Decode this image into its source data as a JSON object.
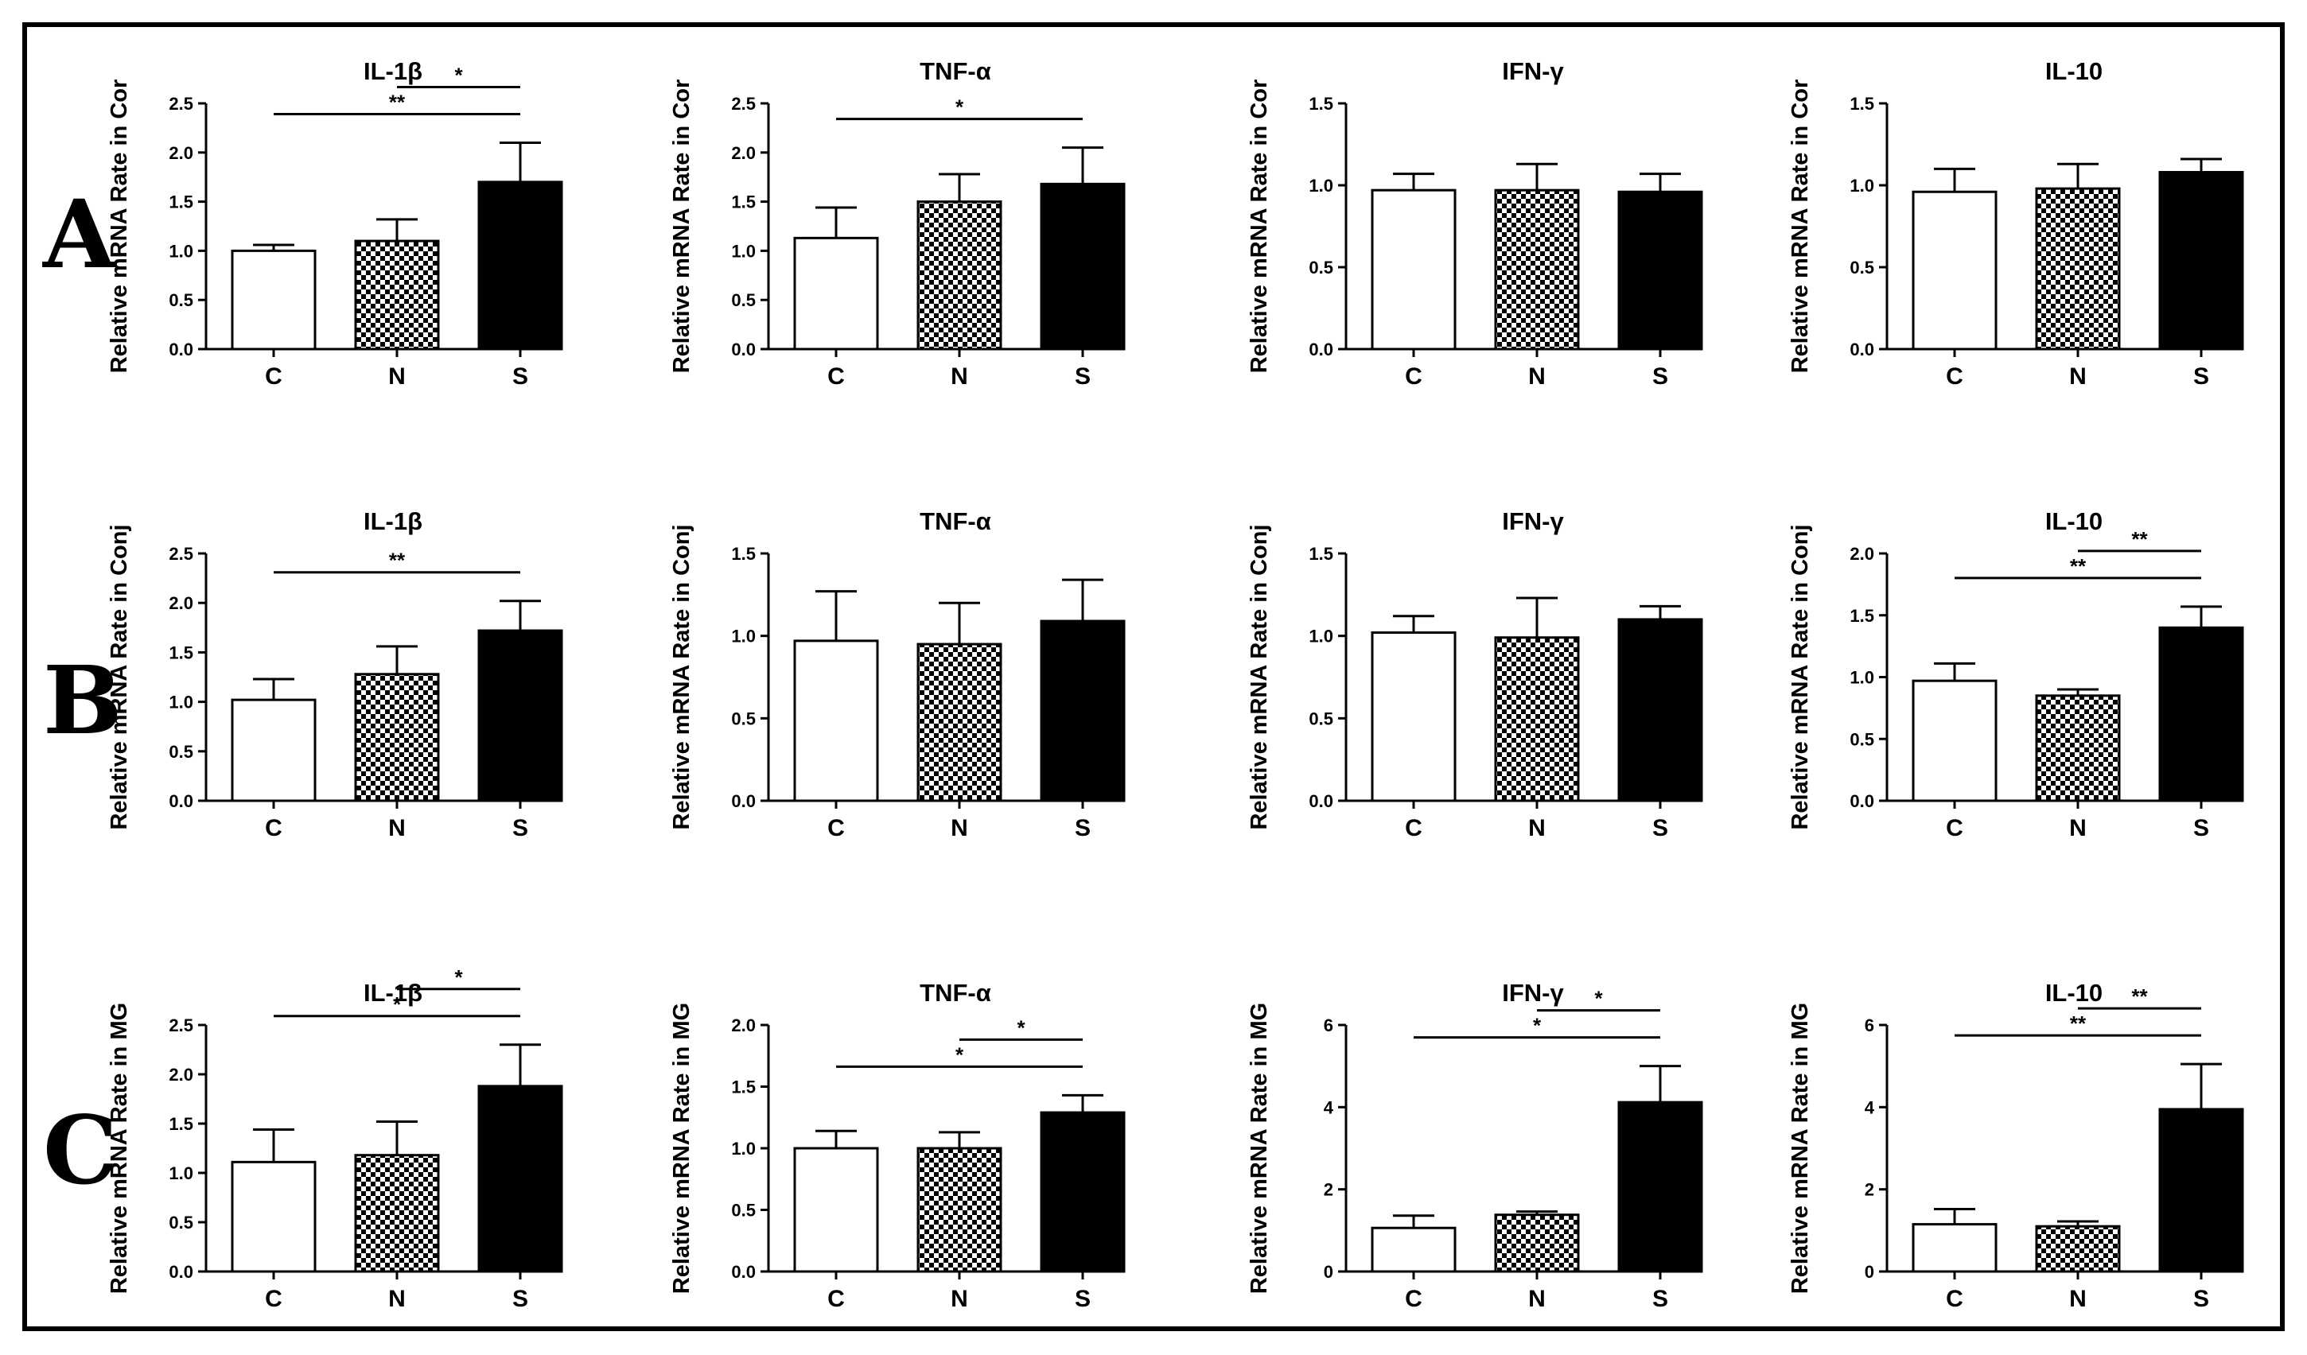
{
  "figure": {
    "row_labels": [
      "A",
      "B",
      "C"
    ],
    "colors": {
      "C": "#ffffff",
      "N": "checker",
      "S": "#000000"
    }
  },
  "chart_data": [
    {
      "type": "bar",
      "title": "IL-1β",
      "ylabel": "Relative mRNA Rate in Cor",
      "categories": [
        "C",
        "N",
        "S"
      ],
      "values": [
        1.0,
        1.1,
        1.7
      ],
      "errors": [
        0.06,
        0.22,
        0.4
      ],
      "ylim": [
        0,
        2.5
      ],
      "yticks": [
        "0.0",
        "0.5",
        "1.0",
        "1.5",
        "2.0",
        "2.5"
      ],
      "significance": [
        {
          "from": 0,
          "to": 2,
          "label": "**"
        },
        {
          "from": 1,
          "to": 2,
          "label": "*"
        }
      ]
    },
    {
      "type": "bar",
      "title": "TNF-α",
      "ylabel": "Relative mRNA Rate in Cor",
      "categories": [
        "C",
        "N",
        "S"
      ],
      "values": [
        1.13,
        1.5,
        1.68
      ],
      "errors": [
        0.31,
        0.28,
        0.37
      ],
      "ylim": [
        0,
        2.5
      ],
      "yticks": [
        "0.0",
        "0.5",
        "1.0",
        "1.5",
        "2.0",
        "2.5"
      ],
      "significance": [
        {
          "from": 0,
          "to": 2,
          "label": "*"
        }
      ]
    },
    {
      "type": "bar",
      "title": "IFN-γ",
      "ylabel": "Relative mRNA Rate in Cor",
      "categories": [
        "C",
        "N",
        "S"
      ],
      "values": [
        0.97,
        0.97,
        0.96
      ],
      "errors": [
        0.1,
        0.16,
        0.11
      ],
      "ylim": [
        0,
        1.5
      ],
      "yticks": [
        "0.0",
        "0.5",
        "1.0",
        "1.5"
      ],
      "significance": []
    },
    {
      "type": "bar",
      "title": "IL-10",
      "ylabel": "Relative mRNA Rate in Cor",
      "categories": [
        "C",
        "N",
        "S"
      ],
      "values": [
        0.96,
        0.98,
        1.08
      ],
      "errors": [
        0.14,
        0.15,
        0.08
      ],
      "ylim": [
        0,
        1.5
      ],
      "yticks": [
        "0.0",
        "0.5",
        "1.0",
        "1.5"
      ],
      "significance": []
    },
    {
      "type": "bar",
      "title": "IL-1β",
      "ylabel": "Relative mRNA Rate in Conj",
      "categories": [
        "C",
        "N",
        "S"
      ],
      "values": [
        1.02,
        1.28,
        1.72
      ],
      "errors": [
        0.21,
        0.28,
        0.3
      ],
      "ylim": [
        0,
        2.5
      ],
      "yticks": [
        "0.0",
        "0.5",
        "1.0",
        "1.5",
        "2.0",
        "2.5"
      ],
      "significance": [
        {
          "from": 0,
          "to": 2,
          "label": "**"
        }
      ]
    },
    {
      "type": "bar",
      "title": "TNF-α",
      "ylabel": "Relative mRNA Rate in Conj",
      "categories": [
        "C",
        "N",
        "S"
      ],
      "values": [
        0.97,
        0.95,
        1.09
      ],
      "errors": [
        0.3,
        0.25,
        0.25
      ],
      "ylim": [
        0,
        1.5
      ],
      "yticks": [
        "0.0",
        "0.5",
        "1.0",
        "1.5"
      ],
      "significance": []
    },
    {
      "type": "bar",
      "title": "IFN-γ",
      "ylabel": "Relative mRNA Rate in Conj",
      "categories": [
        "C",
        "N",
        "S"
      ],
      "values": [
        1.02,
        0.99,
        1.1
      ],
      "errors": [
        0.1,
        0.24,
        0.08
      ],
      "ylim": [
        0,
        1.5
      ],
      "yticks": [
        "0.0",
        "0.5",
        "1.0",
        "1.5"
      ],
      "significance": []
    },
    {
      "type": "bar",
      "title": "IL-10",
      "ylabel": "Relative mRNA Rate in Conj",
      "categories": [
        "C",
        "N",
        "S"
      ],
      "values": [
        0.97,
        0.85,
        1.4
      ],
      "errors": [
        0.14,
        0.05,
        0.17
      ],
      "ylim": [
        0,
        2.0
      ],
      "yticks": [
        "0.0",
        "0.5",
        "1.0",
        "1.5",
        "2.0"
      ],
      "significance": [
        {
          "from": 0,
          "to": 2,
          "label": "**"
        },
        {
          "from": 1,
          "to": 2,
          "label": "**"
        }
      ]
    },
    {
      "type": "bar",
      "title": "IL-1β",
      "ylabel": "Relative mRNA Rate in MG",
      "categories": [
        "C",
        "N",
        "S"
      ],
      "values": [
        1.11,
        1.18,
        1.88
      ],
      "errors": [
        0.33,
        0.34,
        0.42
      ],
      "ylim": [
        0,
        2.5
      ],
      "yticks": [
        "0.0",
        "0.5",
        "1.0",
        "1.5",
        "2.0",
        "2.5"
      ],
      "significance": [
        {
          "from": 0,
          "to": 2,
          "label": "*"
        },
        {
          "from": 1,
          "to": 2,
          "label": "*"
        }
      ]
    },
    {
      "type": "bar",
      "title": "TNF-α",
      "ylabel": "Relative mRNA Rate in MG",
      "categories": [
        "C",
        "N",
        "S"
      ],
      "values": [
        1.0,
        1.0,
        1.29
      ],
      "errors": [
        0.14,
        0.13,
        0.14
      ],
      "ylim": [
        0,
        2.0
      ],
      "yticks": [
        "0.0",
        "0.5",
        "1.0",
        "1.5",
        "2.0"
      ],
      "significance": [
        {
          "from": 0,
          "to": 2,
          "label": "*"
        },
        {
          "from": 1,
          "to": 2,
          "label": "*"
        }
      ]
    },
    {
      "type": "bar",
      "title": "IFN-γ",
      "ylabel": "Relative mRNA Rate in MG",
      "categories": [
        "C",
        "N",
        "S"
      ],
      "values": [
        1.06,
        1.38,
        4.12
      ],
      "errors": [
        0.3,
        0.08,
        0.88
      ],
      "ylim": [
        0,
        6
      ],
      "yticks": [
        "0",
        "2",
        "4",
        "6"
      ],
      "significance": [
        {
          "from": 0,
          "to": 2,
          "label": "*"
        },
        {
          "from": 1,
          "to": 2,
          "label": "*"
        }
      ]
    },
    {
      "type": "bar",
      "title": "IL-10",
      "ylabel": "Relative mRNA Rate in MG",
      "categories": [
        "C",
        "N",
        "S"
      ],
      "values": [
        1.15,
        1.1,
        3.95
      ],
      "errors": [
        0.37,
        0.12,
        1.1
      ],
      "ylim": [
        0,
        6
      ],
      "yticks": [
        "0",
        "2",
        "4",
        "6"
      ],
      "significance": [
        {
          "from": 0,
          "to": 2,
          "label": "**"
        },
        {
          "from": 1,
          "to": 2,
          "label": "**"
        }
      ]
    }
  ]
}
